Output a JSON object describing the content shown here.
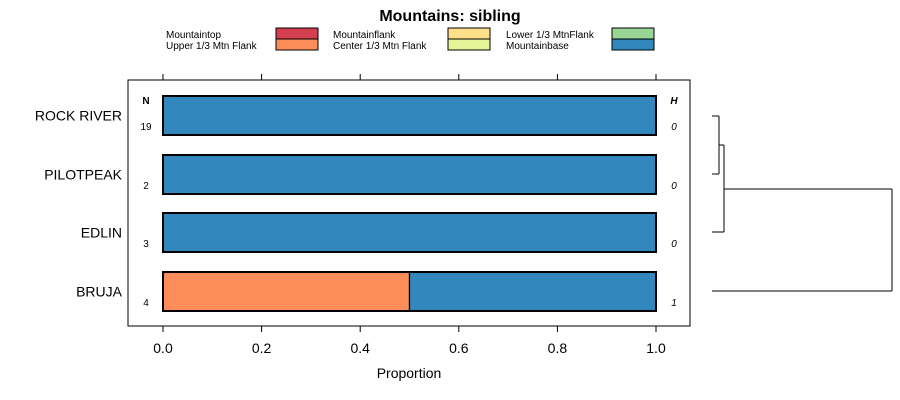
{
  "chart_data": {
    "type": "bar",
    "orientation": "horizontal",
    "stacked": true,
    "title": "Mountains: sibling",
    "xlabel": "Proportion",
    "ylabel": "",
    "xlim": [
      0,
      1
    ],
    "x_ticks": [
      "0.0",
      "0.2",
      "0.4",
      "0.6",
      "0.8",
      "1.0"
    ],
    "categories": [
      "ROCK RIVER",
      "PILOTPEAK",
      "EDLIN",
      "BRUJA"
    ],
    "n_header": "N",
    "h_header": "H",
    "n_values": [
      "19",
      "2",
      "3",
      "4"
    ],
    "h_values": [
      "0",
      "0",
      "0",
      "1"
    ],
    "series": [
      {
        "name": "Mountaintop",
        "color": "#d53e4f",
        "values": [
          0,
          0,
          0,
          0
        ]
      },
      {
        "name": "Upper 1/3 Mtn Flank",
        "color": "#fc8d59",
        "values": [
          0,
          0,
          0,
          0.5
        ]
      },
      {
        "name": "Mountainflank",
        "color": "#fee08b",
        "values": [
          0,
          0,
          0,
          0
        ]
      },
      {
        "name": "Center 1/3 Mtn Flank",
        "color": "#e6f598",
        "values": [
          0,
          0,
          0,
          0
        ]
      },
      {
        "name": "Lower 1/3 MtnFlank",
        "color": "#99d594",
        "values": [
          0,
          0,
          0,
          0
        ]
      },
      {
        "name": "Mountainbase",
        "color": "#3288bd",
        "values": [
          1,
          1,
          1,
          0.5
        ]
      }
    ],
    "legend": "top",
    "grid": false,
    "dendrogram": true
  }
}
